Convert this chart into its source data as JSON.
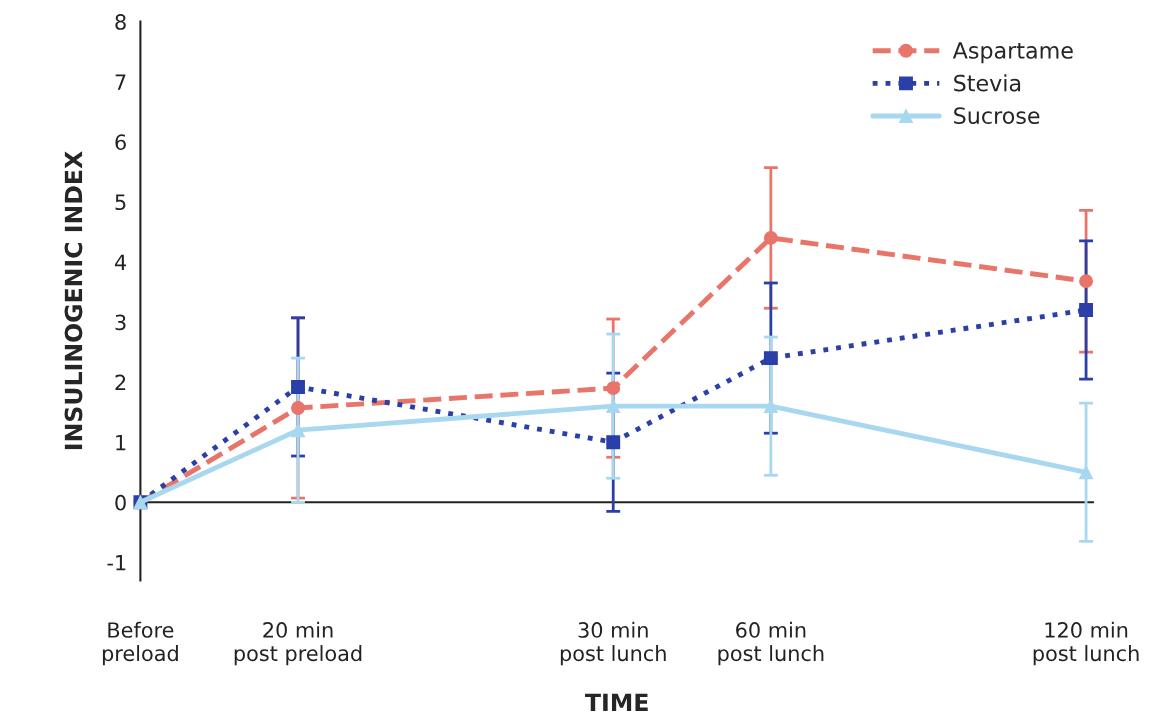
{
  "chart_data": {
    "type": "line",
    "xlabel": "TIME",
    "ylabel": "INSULINOGENIC INDEX",
    "categories": [
      "Before\npreload",
      "20 min\npost preload",
      null,
      "30 min\npost lunch",
      "60 min\npost lunch",
      null,
      "120 min\npost lunch"
    ],
    "series": [
      {
        "name": "Aspartame",
        "color": "#e8756a",
        "line_style": "dashed",
        "marker": "circle",
        "values": [
          0,
          1.57,
          null,
          1.9,
          4.4,
          null,
          3.68
        ],
        "errors": [
          null,
          1.5,
          null,
          1.15,
          1.17,
          null,
          1.18
        ]
      },
      {
        "name": "Stevia",
        "color": "#2a3fa8",
        "line_style": "dotted",
        "marker": "square",
        "values": [
          0,
          1.92,
          null,
          1.0,
          2.4,
          null,
          3.2
        ],
        "errors": [
          null,
          1.15,
          null,
          1.15,
          1.25,
          null,
          1.15
        ]
      },
      {
        "name": "Sucrose",
        "color": "#a8d8f0",
        "line_style": "solid",
        "marker": "triangle",
        "values": [
          0,
          1.2,
          null,
          1.6,
          1.6,
          null,
          0.5
        ],
        "errors": [
          null,
          1.2,
          null,
          1.2,
          1.15,
          null,
          1.15
        ]
      }
    ],
    "ylim": [
      -1.3,
      8
    ],
    "yticks": [
      {
        "value": -1,
        "label": "-1"
      },
      0,
      1,
      2,
      3,
      4,
      5,
      6,
      7,
      8
    ],
    "ref_lines": [
      {
        "axis": "y",
        "value": 0,
        "color": "#222222"
      }
    ],
    "grid": false,
    "legend": "top right"
  }
}
